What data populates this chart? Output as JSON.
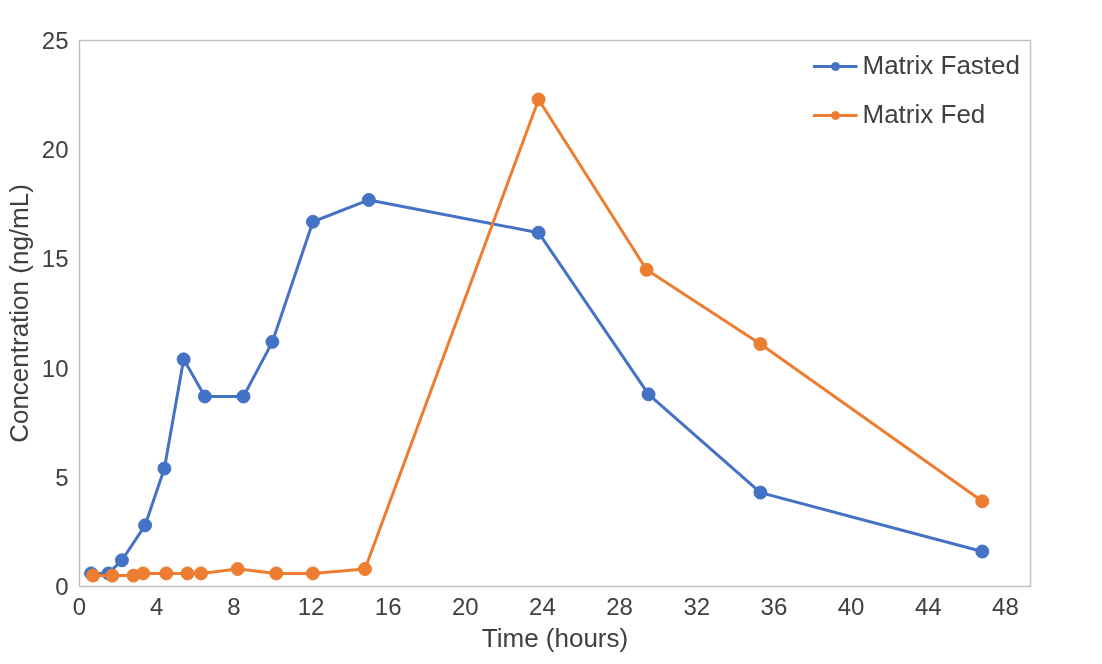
{
  "chart_data": {
    "type": "line",
    "xlabel": "Time (hours)",
    "ylabel": "Concentration (ng/mL)",
    "xlim": [
      0,
      49.3
    ],
    "ylim": [
      0,
      25
    ],
    "xticks": [
      0,
      4,
      8,
      12,
      16,
      20,
      24,
      28,
      32,
      36,
      40,
      44,
      48
    ],
    "yticks": [
      0,
      5,
      10,
      15,
      20,
      25
    ],
    "grid": false,
    "legend": "top right",
    "marker": "circle",
    "line_style": "solid",
    "series": [
      {
        "name": "Matrix Fasted",
        "color": "#4472c4",
        "x": [
          0.6,
          1.5,
          2.2,
          3.4,
          4.4,
          5.4,
          6.5,
          8.5,
          10,
          12.1,
          15,
          23.8,
          29.5,
          35.3,
          46.8
        ],
        "values": [
          0.6,
          0.6,
          1.2,
          2.8,
          5.4,
          10.4,
          8.7,
          8.7,
          11.2,
          16.7,
          17.7,
          16.2,
          8.8,
          4.3,
          1.6
        ]
      },
      {
        "name": "Matrix Fed",
        "color": "#ed7d31",
        "x": [
          0.7,
          1.7,
          2.8,
          3.3,
          4.5,
          5.6,
          6.3,
          8.2,
          10.2,
          12.1,
          14.8,
          23.8,
          29.4,
          35.3,
          46.8
        ],
        "values": [
          0.5,
          0.5,
          0.5,
          0.6,
          0.6,
          0.6,
          0.6,
          0.8,
          0.6,
          0.6,
          0.8,
          22.3,
          14.5,
          11.1,
          3.9
        ]
      }
    ]
  }
}
